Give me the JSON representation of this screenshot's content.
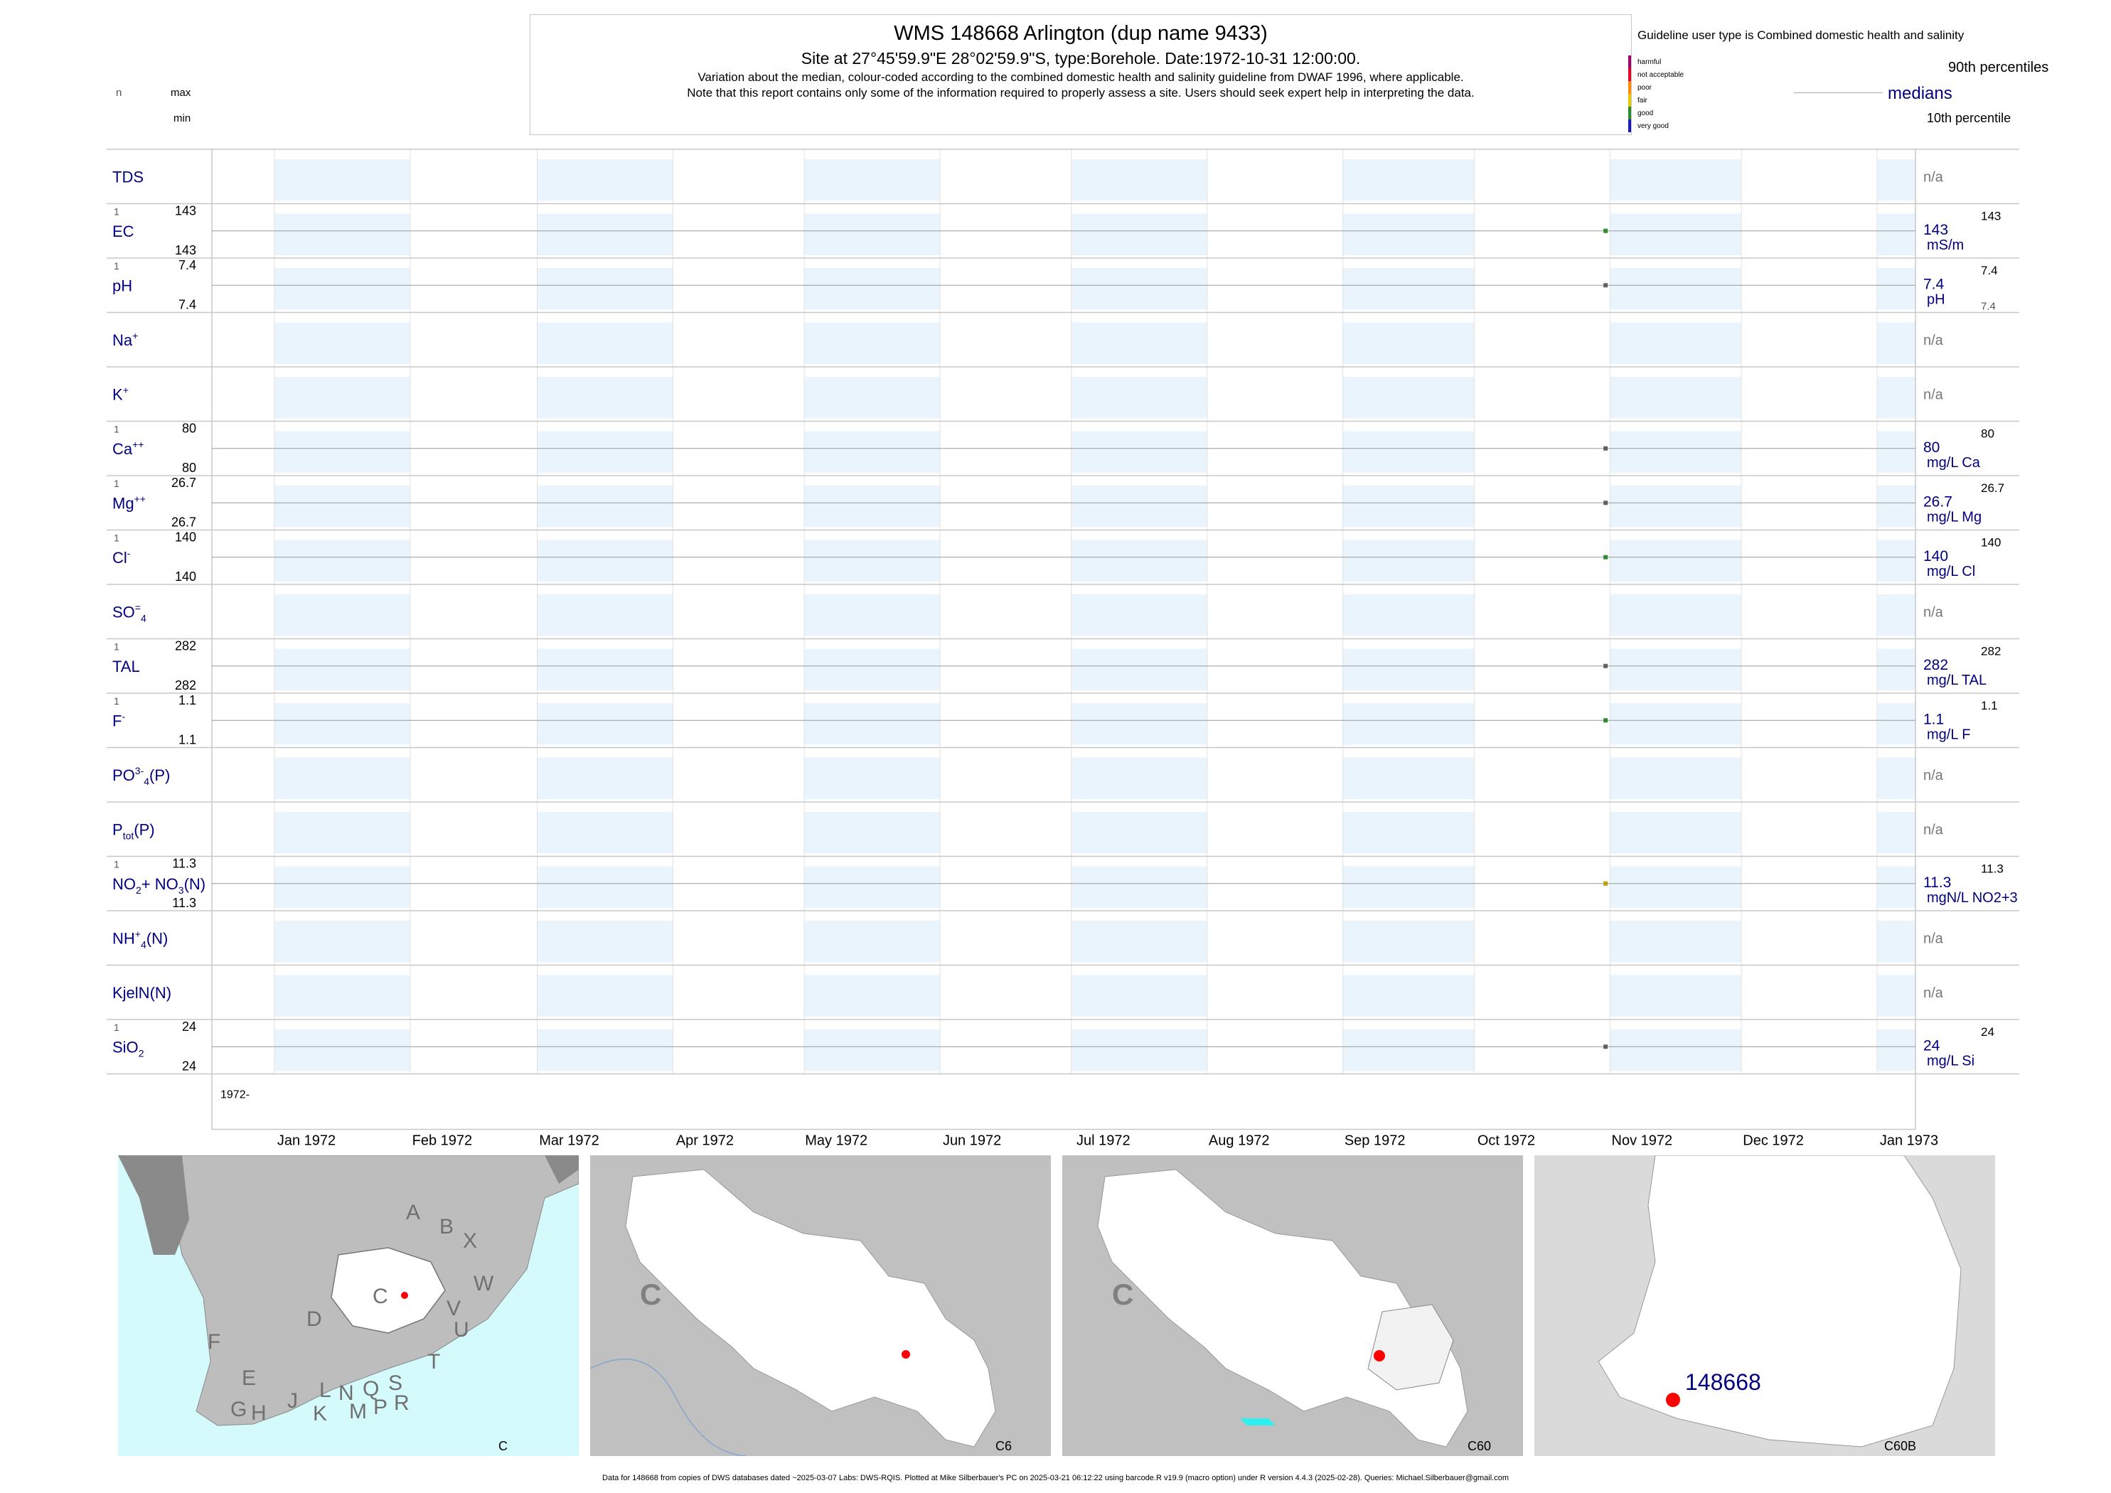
{
  "header": {
    "title": "WMS 148668  Arlington (dup name 9433)",
    "subtitle": "Site at 27°45'59.9\"E 28°02'59.9\"S, type:Borehole. Date:1972-10-31 12:00:00.",
    "note1": "Variation about the median,  colour-coded according to the combined domestic health and salinity guideline from DWAF 1996, where applicable.",
    "note2": "Note that this report contains only some of the information required to properly assess a site. Users should seek expert help in interpreting the data."
  },
  "left_labels": {
    "n": "n",
    "max": "max",
    "min": "min"
  },
  "legend": {
    "guideline": "Guideline user type is Combined domestic health and salinity",
    "categories": [
      {
        "label": "harmful",
        "color": "#a0006e"
      },
      {
        "label": "not acceptable",
        "color": "#e0002e"
      },
      {
        "label": "poor",
        "color": "#ff8c00"
      },
      {
        "label": "fair",
        "color": "#e6c800"
      },
      {
        "label": "good",
        "color": "#2e8b2e"
      },
      {
        "label": "very good",
        "color": "#1c1cb4"
      }
    ],
    "p90": "90th percentiles",
    "medians": "medians",
    "p10": "10th percentile"
  },
  "chart_data": {
    "type": "scatter",
    "x_axis": {
      "start_label": "1972-",
      "tick_labels": [
        "Jan 1972",
        "Feb 1972",
        "Mar 1972",
        "Apr 1972",
        "May 1972",
        "Jun 1972",
        "Jul 1972",
        "Aug 1972",
        "Sep 1972",
        "Oct 1972",
        "Nov 1972",
        "Dec 1972",
        "Jan 1973"
      ]
    },
    "sample_date": "1972-10-31",
    "rows": [
      {
        "name": "TDS",
        "n": null,
        "max": null,
        "min": null,
        "value": null,
        "median": "n/a",
        "unit": "",
        "p90": "",
        "color": ""
      },
      {
        "name": "EC",
        "n": "1",
        "max": "143",
        "min": "143",
        "value": 143,
        "median": "143",
        "unit": "mS/m",
        "p90": "143",
        "color": "#2e8b2e"
      },
      {
        "name": "pH",
        "n": "1",
        "max": "7.4",
        "min": "7.4",
        "value": 7.4,
        "median": "7.4",
        "unit": "pH",
        "p90": "7.4",
        "p10": "7.4",
        "color": "#606060"
      },
      {
        "name": "Na+",
        "n": null,
        "max": null,
        "min": null,
        "value": null,
        "median": "n/a",
        "unit": "",
        "p90": "",
        "color": ""
      },
      {
        "name": "K+",
        "n": null,
        "max": null,
        "min": null,
        "value": null,
        "median": "n/a",
        "unit": "",
        "p90": "",
        "color": ""
      },
      {
        "name": "Ca++",
        "n": "1",
        "max": "80",
        "min": "80",
        "value": 80,
        "median": "80",
        "unit": "mg/L Ca",
        "p90": "80",
        "color": "#606060"
      },
      {
        "name": "Mg++",
        "n": "1",
        "max": "26.7",
        "min": "26.7",
        "value": 26.7,
        "median": "26.7",
        "unit": "mg/L Mg",
        "p90": "26.7",
        "color": "#606060"
      },
      {
        "name": "Cl-",
        "n": "1",
        "max": "140",
        "min": "140",
        "value": 140,
        "median": "140",
        "unit": "mg/L Cl",
        "p90": "140",
        "color": "#2e8b2e"
      },
      {
        "name": "SO4=",
        "n": null,
        "max": null,
        "min": null,
        "value": null,
        "median": "n/a",
        "unit": "",
        "p90": "",
        "color": ""
      },
      {
        "name": "TAL",
        "n": "1",
        "max": "282",
        "min": "282",
        "value": 282,
        "median": "282",
        "unit": "mg/L TAL",
        "p90": "282",
        "color": "#606060"
      },
      {
        "name": "F-",
        "n": "1",
        "max": "1.1",
        "min": "1.1",
        "value": 1.1,
        "median": "1.1",
        "unit": "mg/L F",
        "p90": "1.1",
        "color": "#2e8b2e"
      },
      {
        "name": "PO4 3-(P)",
        "n": null,
        "max": null,
        "min": null,
        "value": null,
        "median": "n/a",
        "unit": "",
        "p90": "",
        "color": ""
      },
      {
        "name": "Ptot(P)",
        "n": null,
        "max": null,
        "min": null,
        "value": null,
        "median": "n/a",
        "unit": "",
        "p90": "",
        "color": ""
      },
      {
        "name": "NO2+NO3(N)",
        "n": "1",
        "max": "11.3",
        "min": "11.3",
        "value": 11.3,
        "median": "11.3",
        "unit": "mgN/L NO2+3",
        "p90": "11.3",
        "color": "#b4a000"
      },
      {
        "name": "NH4+(N)",
        "n": null,
        "max": null,
        "min": null,
        "value": null,
        "median": "n/a",
        "unit": "",
        "p90": "",
        "color": ""
      },
      {
        "name": "KjelN(N)",
        "n": null,
        "max": null,
        "min": null,
        "value": null,
        "median": "n/a",
        "unit": "",
        "p90": "",
        "color": ""
      },
      {
        "name": "SiO2",
        "n": "1",
        "max": "24",
        "min": "24",
        "value": 24,
        "median": "24",
        "unit": "mg/L Si",
        "p90": "24",
        "color": "#606060"
      }
    ]
  },
  "maps": {
    "m1": {
      "caption": "C",
      "region_labels": [
        "A",
        "B",
        "X",
        "W",
        "C",
        "V",
        "U",
        "D",
        "T",
        "F",
        "E",
        "G",
        "H",
        "J",
        "K",
        "L",
        "N",
        "M",
        "Q",
        "P",
        "S",
        "R"
      ]
    },
    "m2": {
      "caption": "C6",
      "big_label": "C"
    },
    "m3": {
      "caption": "C60",
      "big_label": "C"
    },
    "m4": {
      "caption": "C60B",
      "site_label": "148668"
    }
  },
  "footer": "Data for 148668 from copies of DWS databases dated ~2025-03-07 Labs: DWS-RQIS. Plotted at Mike Silberbauer's PC on 2025-03-21 06:12:22 using barcode.R v19.9 (macro option) under R version 4.4.3 (2025-02-28). Queries: Michael.Silberbauer@gmail.com"
}
